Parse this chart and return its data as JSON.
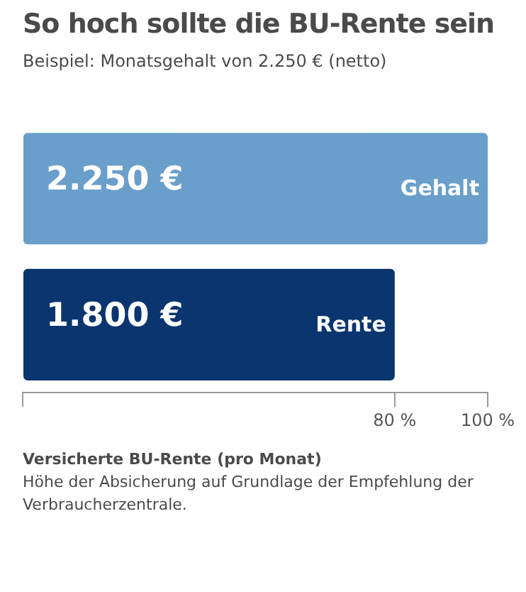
{
  "chart_data": {
    "type": "bar",
    "orientation": "horizontal",
    "title": "So hoch sollte die BU-Rente sein",
    "subtitle": "Beispiel: Monatsgehalt von 2.250 € (netto)",
    "categories": [
      "Gehalt",
      "Rente"
    ],
    "values": [
      100,
      80
    ],
    "colors": [
      "#6a9ecb",
      "#0a356e"
    ],
    "xlim": [
      0,
      100
    ],
    "xticks": [
      {
        "value": 0,
        "label": null
      },
      {
        "value": 80,
        "label": "80 %"
      },
      {
        "value": 100,
        "label": "100 %"
      }
    ],
    "grid": false,
    "legend": false,
    "annotations": [
      "2.250 €",
      "1.800 €",
      "Versicherte BU-Rente (pro Monat)",
      "Höhe der Absicherung auf Grundlage der Empfehlung der Verbraucherzentrale."
    ]
  }
}
